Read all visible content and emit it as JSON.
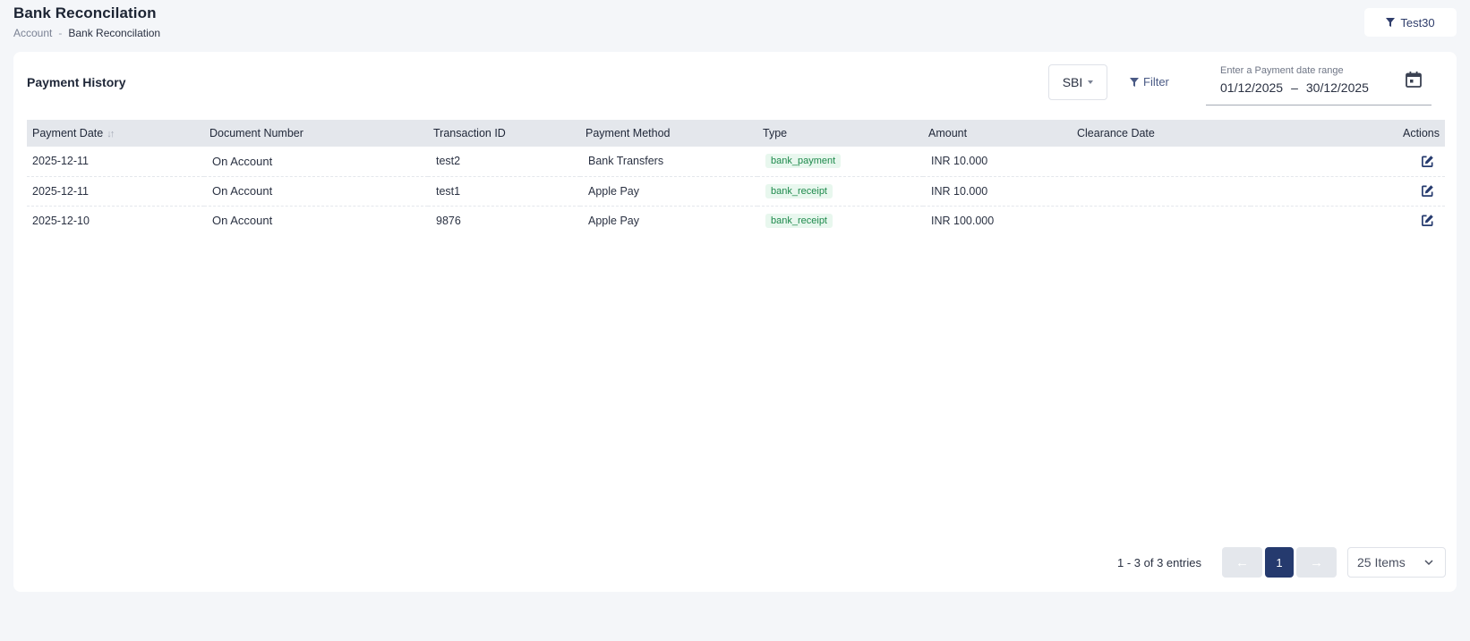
{
  "header": {
    "title": "Bank Reconcilation",
    "breadcrumb": [
      "Account",
      "Bank Reconcilation"
    ],
    "breadcrumb_sep": "-",
    "filter_button_label": "Test30"
  },
  "card": {
    "title": "Payment History",
    "bank_select": "SBI",
    "filter_label": "Filter",
    "date_range": {
      "label": "Enter a Payment date range",
      "start": "01/12/2025",
      "sep": "–",
      "end": "30/12/2025"
    }
  },
  "table": {
    "columns": [
      "Payment Date",
      "Document Number",
      "Transaction ID",
      "Payment Method",
      "Type",
      "Amount",
      "Clearance Date",
      "Actions"
    ],
    "sort_icon": "↓↑",
    "rows": [
      {
        "payment_date": "2025-12-11",
        "document_number": "On Account",
        "transaction_id": "test2",
        "payment_method": "Bank Transfers",
        "type": "bank_payment",
        "amount": "INR 10.000",
        "clearance_date": ""
      },
      {
        "payment_date": "2025-12-11",
        "document_number": "On Account",
        "transaction_id": "test1",
        "payment_method": "Apple Pay",
        "type": "bank_receipt",
        "amount": "INR 10.000",
        "clearance_date": ""
      },
      {
        "payment_date": "2025-12-10",
        "document_number": "On Account",
        "transaction_id": "9876",
        "payment_method": "Apple Pay",
        "type": "bank_receipt",
        "amount": "INR 100.000",
        "clearance_date": ""
      }
    ]
  },
  "pagination": {
    "entries_text": "1 - 3 of 3 entries",
    "prev": "←",
    "current_page": "1",
    "next": "→",
    "items_per_page": "25 Items"
  },
  "colors": {
    "primary": "#253a6e",
    "badge_bg": "#e8f7ee",
    "badge_text": "#1e8a4c",
    "header_bg": "#e4e7ec"
  },
  "icons": [
    "filter-icon",
    "calendar-icon",
    "edit-icon",
    "chevron-down-icon",
    "sort-icon"
  ]
}
